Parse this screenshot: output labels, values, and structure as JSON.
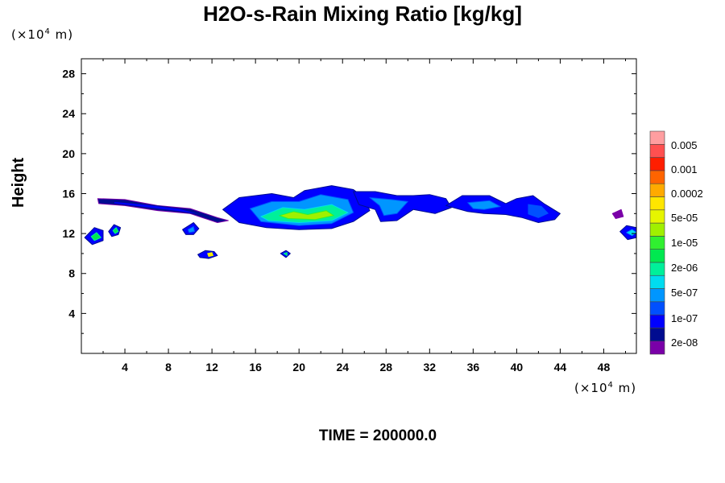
{
  "chart_data": {
    "type": "heatmap",
    "title": "H2O-s-Rain Mixing Ratio [kg/kg]",
    "xlabel": "",
    "ylabel": "Height",
    "x_unit": "(×10⁴ m)",
    "y_unit": "(×10⁴ m)",
    "x_unit_prefix": "(×10",
    "unit_exponent": "4",
    "unit_suffix": " m)",
    "xlim": [
      0,
      51
    ],
    "ylim": [
      0,
      29.5
    ],
    "x_ticks": [
      4,
      8,
      12,
      16,
      20,
      24,
      28,
      32,
      36,
      40,
      44,
      48
    ],
    "y_ticks": [
      4,
      8,
      12,
      16,
      20,
      24,
      28
    ],
    "footer": "TIME = 200000.0",
    "colorbar": {
      "colors": [
        "#7a00a8",
        "#000c90",
        "#0000ff",
        "#0050ff",
        "#0096ff",
        "#00dcf0",
        "#00f09a",
        "#00e850",
        "#30f030",
        "#a0f000",
        "#e6f500",
        "#ffe600",
        "#ffaa00",
        "#ff6400",
        "#ff1e00",
        "#ff5050",
        "#ff9ea0"
      ],
      "labels": [
        {
          "level": 1,
          "text": "2e-08"
        },
        {
          "level": 3,
          "text": "1e-07"
        },
        {
          "level": 4,
          "text": "5e-07"
        },
        {
          "level": 6,
          "text": "2e-06"
        },
        {
          "level": 7,
          "text": "1e-05"
        },
        {
          "level": 8,
          "text": "5e-05"
        },
        {
          "level": 10,
          "text": "0.0002"
        },
        {
          "level": 12,
          "text": "0.001"
        },
        {
          "level": 13,
          "text": "0.005"
        }
      ]
    },
    "regions": [
      {
        "name": "anvil-left",
        "band": 1,
        "points": [
          [
            1.5,
            15.5
          ],
          [
            4,
            15.4
          ],
          [
            7,
            14.8
          ],
          [
            10,
            14.5
          ],
          [
            12.5,
            13.6
          ],
          [
            13.5,
            13.3
          ],
          [
            12.5,
            13.1
          ],
          [
            10,
            14.0
          ],
          [
            7,
            14.3
          ],
          [
            4,
            14.8
          ],
          [
            1.6,
            15.0
          ]
        ]
      },
      {
        "name": "anvil-left-core",
        "band": 2,
        "points": [
          [
            3,
            15.2
          ],
          [
            6,
            14.9
          ],
          [
            9,
            14.5
          ],
          [
            11.5,
            13.8
          ],
          [
            9,
            14.2
          ],
          [
            6,
            14.6
          ],
          [
            3,
            15.0
          ]
        ]
      },
      {
        "name": "main-cloud",
        "band": 2,
        "points": [
          [
            13,
            14.4
          ],
          [
            14.5,
            15.6
          ],
          [
            17.5,
            16.0
          ],
          [
            19.5,
            15.6
          ],
          [
            20.5,
            16.3
          ],
          [
            23,
            16.8
          ],
          [
            25,
            16.4
          ],
          [
            26,
            15.6
          ],
          [
            26.5,
            14.3
          ],
          [
            25,
            13.2
          ],
          [
            23,
            12.5
          ],
          [
            20,
            12.4
          ],
          [
            17,
            12.6
          ],
          [
            14.5,
            13.1
          ]
        ]
      },
      {
        "name": "main-cloud-mid",
        "band": 4,
        "points": [
          [
            15.5,
            14.5
          ],
          [
            17.5,
            15.2
          ],
          [
            20,
            15.2
          ],
          [
            22,
            15.9
          ],
          [
            24.5,
            15.4
          ],
          [
            25,
            14.1
          ],
          [
            23,
            13.0
          ],
          [
            20,
            12.8
          ],
          [
            16.5,
            13.2
          ]
        ]
      },
      {
        "name": "main-cloud-green",
        "band": 6,
        "points": [
          [
            16.5,
            13.7
          ],
          [
            18.5,
            14.6
          ],
          [
            20.5,
            14.4
          ],
          [
            23,
            14.9
          ],
          [
            24.5,
            14.1
          ],
          [
            23,
            13.3
          ],
          [
            20,
            13.1
          ],
          [
            17.2,
            13.3
          ]
        ]
      },
      {
        "name": "main-cloud-core",
        "band": 9,
        "points": [
          [
            18.2,
            13.8
          ],
          [
            19.5,
            14.2
          ],
          [
            20.8,
            13.9
          ],
          [
            22.5,
            14.3
          ],
          [
            23.2,
            13.8
          ],
          [
            21.5,
            13.4
          ],
          [
            19,
            13.5
          ]
        ]
      },
      {
        "name": "mid-cloud",
        "band": 2,
        "points": [
          [
            25,
            16.2
          ],
          [
            27,
            16.2
          ],
          [
            29,
            15.8
          ],
          [
            30.5,
            15.8
          ],
          [
            32,
            15.9
          ],
          [
            33.5,
            15.5
          ],
          [
            34,
            14.6
          ],
          [
            32.5,
            14.0
          ],
          [
            30.5,
            14.4
          ],
          [
            29,
            13.3
          ],
          [
            27.5,
            13.2
          ],
          [
            27,
            14.4
          ],
          [
            25.5,
            14.9
          ]
        ]
      },
      {
        "name": "mid-cloud-inner",
        "band": 4,
        "points": [
          [
            26.5,
            15.6
          ],
          [
            28.5,
            15.4
          ],
          [
            30,
            15.2
          ],
          [
            29,
            14.0
          ],
          [
            27.8,
            13.8
          ],
          [
            27.4,
            14.8
          ]
        ]
      },
      {
        "name": "right-cloud",
        "band": 2,
        "points": [
          [
            33.5,
            14.8
          ],
          [
            35,
            15.8
          ],
          [
            37.5,
            15.8
          ],
          [
            39,
            15.0
          ],
          [
            40,
            15.5
          ],
          [
            41.5,
            15.8
          ],
          [
            42.5,
            15.0
          ],
          [
            44,
            14.0
          ],
          [
            43.5,
            13.4
          ],
          [
            42,
            13.1
          ],
          [
            40.5,
            13.6
          ],
          [
            39,
            13.9
          ],
          [
            37,
            14.0
          ],
          [
            35.5,
            14.2
          ]
        ]
      },
      {
        "name": "right-cloud-inner",
        "band": 4,
        "points": [
          [
            35.5,
            15.1
          ],
          [
            37.5,
            15.3
          ],
          [
            38.5,
            14.7
          ],
          [
            37,
            14.4
          ],
          [
            36,
            14.5
          ]
        ]
      },
      {
        "name": "right-cloud-inner2",
        "band": 3,
        "points": [
          [
            41,
            15.0
          ],
          [
            42.3,
            14.8
          ],
          [
            43,
            14.0
          ],
          [
            42,
            13.5
          ],
          [
            41,
            13.9
          ]
        ]
      },
      {
        "name": "far-left-cell",
        "band": 2,
        "points": [
          [
            0.3,
            11.6
          ],
          [
            1.2,
            12.6
          ],
          [
            2.0,
            12.3
          ],
          [
            2.0,
            11.3
          ],
          [
            1.0,
            10.9
          ]
        ]
      },
      {
        "name": "far-left-cell-core",
        "band": 7,
        "points": [
          [
            0.9,
            11.7
          ],
          [
            1.4,
            12.1
          ],
          [
            1.8,
            11.6
          ],
          [
            1.2,
            11.3
          ]
        ]
      },
      {
        "name": "left-cell-2",
        "band": 2,
        "points": [
          [
            2.5,
            12.2
          ],
          [
            3.0,
            12.9
          ],
          [
            3.6,
            12.6
          ],
          [
            3.4,
            11.9
          ],
          [
            2.8,
            11.7
          ]
        ]
      },
      {
        "name": "left-cell-2-core",
        "band": 7,
        "points": [
          [
            2.9,
            12.3
          ],
          [
            3.2,
            12.6
          ],
          [
            3.4,
            12.2
          ],
          [
            3.1,
            12.0
          ]
        ]
      },
      {
        "name": "small-cell-a",
        "band": 2,
        "points": [
          [
            9.3,
            12.4
          ],
          [
            10.3,
            13.1
          ],
          [
            10.8,
            12.5
          ],
          [
            10.3,
            11.9
          ],
          [
            9.6,
            11.9
          ]
        ]
      },
      {
        "name": "small-cell-a-core",
        "band": 4,
        "points": [
          [
            9.8,
            12.4
          ],
          [
            10.3,
            12.7
          ],
          [
            10.4,
            12.2
          ],
          [
            9.9,
            12.1
          ]
        ]
      },
      {
        "name": "drop-cell-b",
        "band": 2,
        "points": [
          [
            10.7,
            9.9
          ],
          [
            11.4,
            10.3
          ],
          [
            12.2,
            10.2
          ],
          [
            12.5,
            9.8
          ],
          [
            11.7,
            9.5
          ],
          [
            10.9,
            9.6
          ]
        ]
      },
      {
        "name": "drop-cell-b-core",
        "band": 11,
        "points": [
          [
            11.6,
            10.0
          ],
          [
            12.0,
            10.1
          ],
          [
            12.1,
            9.8
          ],
          [
            11.7,
            9.7
          ]
        ]
      },
      {
        "name": "drop-cell-c",
        "band": 2,
        "points": [
          [
            18.3,
            10.0
          ],
          [
            18.8,
            10.3
          ],
          [
            19.2,
            10.0
          ],
          [
            18.8,
            9.6
          ]
        ]
      },
      {
        "name": "drop-cell-c-core",
        "band": 7,
        "points": [
          [
            18.6,
            10.0
          ],
          [
            18.9,
            10.1
          ],
          [
            18.9,
            9.8
          ]
        ]
      },
      {
        "name": "right-edge-cell",
        "band": 2,
        "points": [
          [
            49.5,
            12.2
          ],
          [
            50.1,
            12.8
          ],
          [
            51,
            12.6
          ],
          [
            51,
            11.6
          ],
          [
            50.2,
            11.4
          ]
        ]
      },
      {
        "name": "right-edge-cell-core",
        "band": 5,
        "points": [
          [
            50.1,
            12.1
          ],
          [
            50.6,
            12.4
          ],
          [
            51,
            12.1
          ],
          [
            50.6,
            11.8
          ]
        ]
      },
      {
        "name": "right-edge-top",
        "band": 0,
        "points": [
          [
            48.8,
            14.0
          ],
          [
            49.6,
            14.4
          ],
          [
            49.8,
            13.7
          ],
          [
            49.1,
            13.5
          ]
        ]
      }
    ]
  }
}
